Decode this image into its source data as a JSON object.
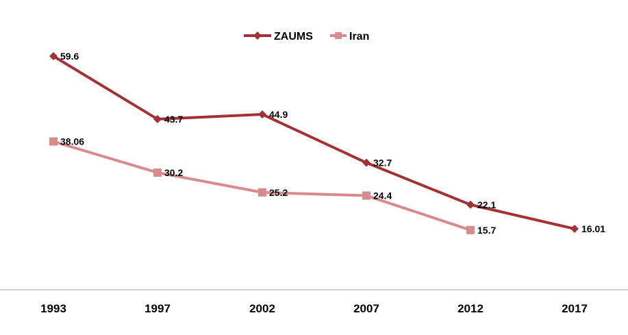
{
  "chart_data": {
    "type": "line",
    "title": "",
    "xlabel": "",
    "ylabel": "",
    "categories": [
      "1993",
      "1997",
      "2002",
      "2007",
      "2012",
      "2017"
    ],
    "ylim": [
      0,
      70
    ],
    "grid": false,
    "legend_position": "top-center",
    "series": [
      {
        "name": "ZAUMS",
        "color": "#a33236",
        "marker": "diamond",
        "values": [
          59.6,
          43.7,
          44.9,
          32.7,
          22.1,
          16.01
        ],
        "labels": [
          "59.6",
          "43.7",
          "44.9",
          "32.7",
          "22.1",
          "16.01"
        ]
      },
      {
        "name": "Iran",
        "color": "#d88a8c",
        "marker": "square",
        "values": [
          38.06,
          30.2,
          25.2,
          24.4,
          15.7,
          null
        ],
        "labels": [
          "38.06",
          "30.2",
          "25.2",
          "24.4",
          "15.7",
          ""
        ]
      }
    ]
  }
}
